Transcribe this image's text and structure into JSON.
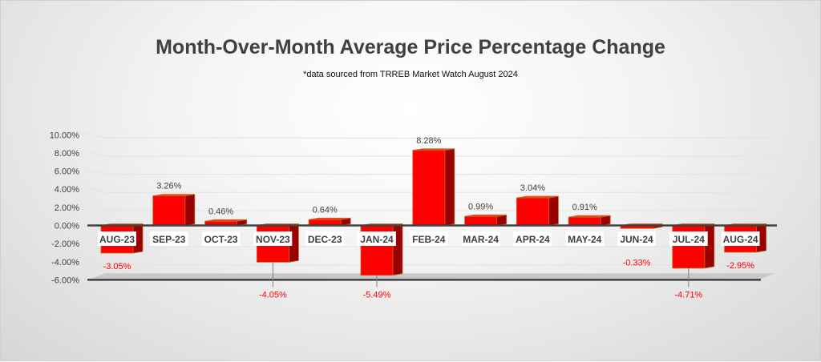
{
  "chart_data": {
    "type": "bar",
    "title": "Month-Over-Month Average Price Percentage Change",
    "subtitle": "*data sourced from TRREB Market Watch August 2024",
    "categories": [
      "AUG-23",
      "SEP-23",
      "OCT-23",
      "NOV-23",
      "DEC-23",
      "JAN-24",
      "FEB-24",
      "MAR-24",
      "APR-24",
      "MAY-24",
      "JUN-24",
      "JUL-24",
      "AUG-24"
    ],
    "values": [
      -3.05,
      3.26,
      0.46,
      -4.05,
      0.64,
      -5.49,
      8.28,
      0.99,
      3.04,
      0.91,
      -0.33,
      -4.71,
      -2.95
    ],
    "data_labels": [
      "-3.05%",
      "3.26%",
      "0.46%",
      "-4.05%",
      "0.64%",
      "-5.49%",
      "8.28%",
      "0.99%",
      "3.04%",
      "0.91%",
      "-0.33%",
      "-4.71%",
      "-2.95%"
    ],
    "yticks": [
      "10.00%",
      "8.00%",
      "6.00%",
      "4.00%",
      "2.00%",
      "0.00%",
      "-2.00%",
      "-4.00%",
      "-6.00%"
    ],
    "ytick_values": [
      10,
      8,
      6,
      4,
      2,
      0,
      -2,
      -4,
      -6
    ],
    "ylim": [
      -6,
      10
    ],
    "xlabel": "",
    "ylabel": "",
    "grid": true,
    "colors": {
      "bar": "#ff0000",
      "bar_side": "#990000",
      "bar_edge": "#c0641e",
      "positive_label": "#404040",
      "negative_label": "#ff0000"
    }
  }
}
